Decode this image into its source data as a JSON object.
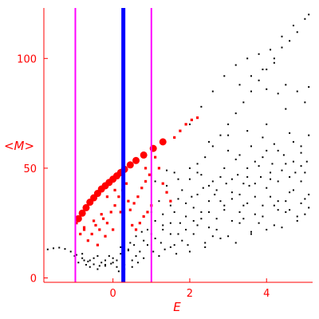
{
  "chart_data": {
    "type": "scatter",
    "xlabel": "E",
    "ylabel": "<M>",
    "xlim": [
      -1.8,
      5.2
    ],
    "ylim": [
      -2,
      123
    ],
    "x_ticks": [
      0,
      2,
      4
    ],
    "x_tick_labels": [
      "0",
      "2",
      "4"
    ],
    "y_ticks": [
      0,
      50,
      100
    ],
    "y_tick_labels": [
      "0",
      "50",
      "100"
    ],
    "grid": false,
    "legend": "none",
    "colors": {
      "axis": "#ff0000",
      "tick_labels": "#ff0000",
      "dots": "#000000",
      "highlight": "#ff0000",
      "guide_lines": "#ff00ff",
      "center_line": "#0000ff"
    },
    "vertical_lines": [
      {
        "x": -0.98,
        "color": "#ff00ff",
        "width": 2
      },
      {
        "x": 0.27,
        "color": "#0000ff",
        "width": 5
      },
      {
        "x": 1.0,
        "color": "#ff00ff",
        "width": 2
      }
    ],
    "series": [
      {
        "style": "dots",
        "color": "#000000",
        "points": [
          [
            -1.7,
            13
          ],
          [
            -1.55,
            13.5
          ],
          [
            -1.4,
            13.8
          ],
          [
            -1.25,
            13.2
          ],
          [
            -1.1,
            12
          ],
          [
            -0.95,
            10.5
          ],
          [
            -0.8,
            9
          ],
          [
            -0.65,
            7.5
          ],
          [
            -0.5,
            6.2
          ],
          [
            -0.35,
            5.5
          ],
          [
            -0.2,
            5.5
          ],
          [
            -0.05,
            6.5
          ],
          [
            0.1,
            8
          ],
          [
            0.25,
            10
          ],
          [
            0.4,
            12.5
          ],
          [
            0.55,
            15
          ],
          [
            -1.0,
            10
          ],
          [
            -0.8,
            11
          ],
          [
            -0.6,
            8
          ],
          [
            -0.4,
            10
          ],
          [
            -0.2,
            8
          ],
          [
            0.0,
            9
          ],
          [
            0.2,
            11
          ],
          [
            0.4,
            13
          ],
          [
            0.6,
            10
          ],
          [
            0.8,
            9
          ],
          [
            -0.9,
            7
          ],
          [
            -0.7,
            6
          ],
          [
            -0.5,
            9
          ],
          [
            -0.3,
            7
          ],
          [
            -0.1,
            10
          ],
          [
            0.1,
            5
          ],
          [
            0.3,
            6
          ],
          [
            0.5,
            8
          ],
          [
            0.7,
            12
          ],
          [
            0.9,
            15
          ],
          [
            1.1,
            18
          ],
          [
            1.3,
            22
          ],
          [
            1.5,
            25
          ],
          [
            1.7,
            20
          ],
          [
            1.9,
            28
          ],
          [
            2.1,
            32
          ],
          [
            2.3,
            27
          ],
          [
            2.5,
            35
          ],
          [
            2.7,
            40
          ],
          [
            2.9,
            33
          ],
          [
            3.1,
            45
          ],
          [
            3.3,
            38
          ],
          [
            3.5,
            50
          ],
          [
            3.7,
            43
          ],
          [
            3.9,
            55
          ],
          [
            4.1,
            48
          ],
          [
            4.3,
            58
          ],
          [
            4.5,
            52
          ],
          [
            4.7,
            62
          ],
          [
            4.9,
            57
          ],
          [
            5.1,
            65
          ],
          [
            1.0,
            30
          ],
          [
            1.2,
            35
          ],
          [
            1.4,
            42
          ],
          [
            1.6,
            48
          ],
          [
            1.8,
            40
          ],
          [
            2.0,
            45
          ],
          [
            2.2,
            52
          ],
          [
            2.4,
            55
          ],
          [
            2.6,
            60
          ],
          [
            2.8,
            65
          ],
          [
            3.0,
            70
          ],
          [
            3.2,
            75
          ],
          [
            3.4,
            80
          ],
          [
            3.6,
            85
          ],
          [
            3.8,
            90
          ],
          [
            4.0,
            95
          ],
          [
            4.2,
            100
          ],
          [
            4.4,
            105
          ],
          [
            4.6,
            108
          ],
          [
            4.8,
            112
          ],
          [
            5.0,
            118
          ],
          [
            5.1,
            120
          ],
          [
            2.0,
            70
          ],
          [
            2.3,
            78
          ],
          [
            2.6,
            85
          ],
          [
            2.9,
            92
          ],
          [
            3.2,
            97
          ],
          [
            3.5,
            100
          ],
          [
            3.8,
            102
          ],
          [
            4.1,
            104
          ],
          [
            4.4,
            110
          ],
          [
            4.7,
            115
          ],
          [
            2.5,
            62
          ],
          [
            3.0,
            65
          ],
          [
            3.5,
            67
          ],
          [
            4.0,
            70
          ],
          [
            4.5,
            77
          ],
          [
            5.0,
            80
          ],
          [
            3.3,
            88
          ],
          [
            3.6,
            92
          ],
          [
            3.9,
            95
          ],
          [
            4.2,
            98
          ],
          [
            4.5,
            88
          ],
          [
            4.8,
            85
          ],
          [
            5.1,
            87
          ],
          [
            4.0,
            86
          ],
          [
            4.3,
            84
          ],
          [
            1.2,
            10
          ],
          [
            1.5,
            14
          ],
          [
            1.8,
            17
          ],
          [
            2.1,
            20
          ],
          [
            2.4,
            16
          ],
          [
            2.7,
            22
          ],
          [
            3.0,
            19
          ],
          [
            3.3,
            25
          ],
          [
            3.6,
            21
          ],
          [
            3.9,
            28
          ],
          [
            4.2,
            24
          ],
          [
            4.5,
            30
          ],
          [
            4.8,
            26
          ],
          [
            5.1,
            32
          ],
          [
            1.3,
            24
          ],
          [
            1.6,
            30
          ],
          [
            1.9,
            34
          ],
          [
            2.2,
            38
          ],
          [
            2.5,
            30
          ],
          [
            2.8,
            35
          ],
          [
            3.1,
            39
          ],
          [
            3.4,
            33
          ],
          [
            3.7,
            37
          ],
          [
            4.0,
            41
          ],
          [
            4.3,
            35
          ],
          [
            4.6,
            39
          ],
          [
            4.9,
            44
          ],
          [
            5.0,
            36
          ],
          [
            0.6,
            19
          ],
          [
            0.8,
            17
          ],
          [
            0.9,
            22
          ],
          [
            1.1,
            26
          ],
          [
            1.3,
            29
          ],
          [
            1.5,
            33
          ],
          [
            1.7,
            36
          ],
          [
            1.9,
            22
          ],
          [
            2.1,
            26
          ],
          [
            2.3,
            30
          ],
          [
            2.5,
            23
          ],
          [
            2.7,
            27
          ],
          [
            2.9,
            31
          ],
          [
            3.1,
            26
          ],
          [
            3.3,
            30
          ],
          [
            3.5,
            34
          ],
          [
            3.7,
            29
          ],
          [
            3.9,
            33
          ],
          [
            4.1,
            37
          ],
          [
            4.3,
            31
          ],
          [
            4.5,
            35
          ],
          [
            4.7,
            40
          ],
          [
            4.9,
            34
          ],
          [
            5.1,
            38
          ],
          [
            1.1,
            44
          ],
          [
            1.4,
            49
          ],
          [
            1.7,
            45
          ],
          [
            2.0,
            50
          ],
          [
            2.3,
            47
          ],
          [
            2.6,
            44
          ],
          [
            2.9,
            50
          ],
          [
            3.2,
            54
          ],
          [
            3.5,
            46
          ],
          [
            3.8,
            51
          ],
          [
            4.1,
            45
          ],
          [
            4.4,
            49
          ],
          [
            4.7,
            53
          ],
          [
            5.0,
            48
          ],
          [
            3.0,
            58
          ],
          [
            3.3,
            56
          ],
          [
            3.6,
            60
          ],
          [
            3.9,
            64
          ],
          [
            4.2,
            61
          ],
          [
            4.6,
            66
          ],
          [
            4.9,
            60
          ],
          [
            2.0,
            12
          ],
          [
            2.4,
            14
          ],
          [
            2.8,
            18
          ],
          [
            3.2,
            16
          ],
          [
            3.6,
            20
          ],
          [
            4.0,
            22
          ],
          [
            4.4,
            23
          ],
          [
            4.8,
            28
          ],
          [
            1.6,
            15
          ],
          [
            2.2,
            24
          ],
          [
            2.6,
            19
          ],
          [
            3.4,
            27
          ],
          [
            3.8,
            25
          ],
          [
            4.2,
            33
          ],
          [
            4.6,
            31
          ],
          [
            5.0,
            29
          ],
          [
            0.2,
            14
          ],
          [
            0.45,
            16
          ],
          [
            0.75,
            21
          ],
          [
            1.0,
            20
          ],
          [
            1.25,
            16
          ],
          [
            1.5,
            20
          ],
          [
            1.75,
            25
          ],
          [
            2.05,
            37
          ],
          [
            2.35,
            41
          ],
          [
            2.65,
            38
          ],
          [
            2.95,
            43
          ],
          [
            3.25,
            47
          ],
          [
            3.55,
            42
          ],
          [
            3.85,
            46
          ],
          [
            4.15,
            52
          ],
          [
            4.45,
            56
          ],
          [
            4.75,
            48
          ],
          [
            5.05,
            53
          ],
          [
            2.2,
            48
          ],
          [
            2.5,
            42
          ],
          [
            2.8,
            46
          ],
          [
            3.1,
            36
          ],
          [
            3.4,
            43
          ],
          [
            3.7,
            53
          ],
          [
            4.0,
            58
          ],
          [
            4.3,
            44
          ],
          [
            4.6,
            46
          ],
          [
            4.9,
            51
          ],
          [
            0.0,
            7
          ],
          [
            -0.2,
            6
          ],
          [
            0.3,
            4
          ],
          [
            0.5,
            5
          ],
          [
            0.65,
            7
          ],
          [
            -0.4,
            4
          ],
          [
            -0.6,
            5
          ],
          [
            -0.75,
            8
          ],
          [
            0.15,
            3
          ],
          [
            1.05,
            12
          ],
          [
            1.35,
            13
          ],
          [
            1.65,
            11
          ],
          [
            1.95,
            15
          ]
        ]
      },
      {
        "style": "large-markers",
        "color": "#ff0000",
        "points": [
          [
            -0.9,
            27
          ],
          [
            -0.8,
            29.5
          ],
          [
            -0.7,
            32
          ],
          [
            -0.6,
            34.5
          ],
          [
            -0.5,
            36.5
          ],
          [
            -0.4,
            38.5
          ],
          [
            -0.3,
            40.5
          ],
          [
            -0.2,
            42
          ],
          [
            -0.1,
            43.5
          ],
          [
            0.0,
            45
          ],
          [
            0.1,
            46.5
          ],
          [
            0.2,
            48
          ],
          [
            0.3,
            49.5
          ],
          [
            0.45,
            51.5
          ],
          [
            0.6,
            53.5
          ],
          [
            0.8,
            56
          ],
          [
            1.05,
            59
          ],
          [
            1.3,
            62
          ]
        ]
      },
      {
        "style": "small-markers",
        "color": "#ff0000",
        "points": [
          [
            -0.95,
            25
          ],
          [
            -0.85,
            20
          ],
          [
            -0.75,
            23
          ],
          [
            -0.65,
            17
          ],
          [
            -0.55,
            20
          ],
          [
            -0.45,
            24
          ],
          [
            -0.35,
            22
          ],
          [
            -0.25,
            27
          ],
          [
            -0.15,
            25
          ],
          [
            -0.05,
            30
          ],
          [
            0.05,
            33
          ],
          [
            0.15,
            37
          ],
          [
            0.25,
            40
          ],
          [
            0.35,
            43
          ],
          [
            0.45,
            31
          ],
          [
            0.55,
            34
          ],
          [
            0.65,
            37
          ],
          [
            0.75,
            41
          ],
          [
            0.85,
            44
          ],
          [
            0.95,
            47
          ],
          [
            1.1,
            55
          ],
          [
            1.2,
            50
          ],
          [
            1.3,
            43
          ],
          [
            1.4,
            39
          ],
          [
            1.5,
            35
          ],
          [
            1.6,
            64
          ],
          [
            1.75,
            67
          ],
          [
            1.9,
            70
          ],
          [
            2.05,
            72
          ],
          [
            2.2,
            73
          ],
          [
            0.5,
            24
          ],
          [
            0.6,
            22
          ],
          [
            0.7,
            25
          ],
          [
            0.8,
            28
          ],
          [
            0.9,
            30
          ],
          [
            1.0,
            33
          ],
          [
            -0.4,
            15
          ],
          [
            -0.2,
            19
          ],
          [
            0.0,
            22
          ],
          [
            0.2,
            30
          ],
          [
            0.4,
            35
          ],
          [
            -0.75,
            22
          ],
          [
            -0.5,
            26
          ],
          [
            -0.3,
            29
          ],
          [
            -0.15,
            37
          ],
          [
            0.05,
            40
          ],
          [
            0.3,
            50
          ],
          [
            0.85,
            50
          ]
        ]
      }
    ]
  }
}
